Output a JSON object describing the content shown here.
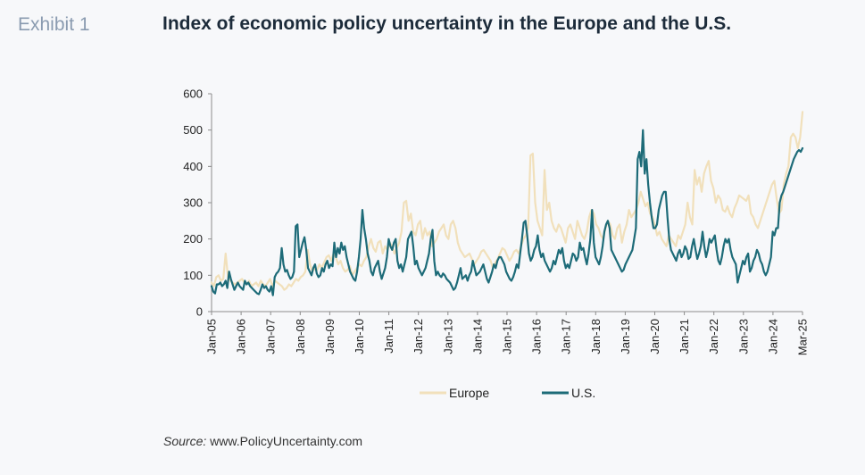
{
  "header": {
    "exhibit": "Exhibit 1",
    "title": "Index of economic policy uncertainty in the Europe and the U.S."
  },
  "source": {
    "label": "Source:",
    "text": " www.PolicyUncertainty.com"
  },
  "colors": {
    "europe": "#f1e0bb",
    "us": "#1d6b78",
    "axis": "#8c8c8c",
    "text": "#222222"
  },
  "chart_data": {
    "type": "line",
    "title": "Index of economic policy uncertainty in the Europe and the U.S.",
    "xlabel": "",
    "ylabel": "",
    "ylim": [
      0,
      600
    ],
    "yticks": [
      0,
      100,
      200,
      300,
      400,
      500,
      600
    ],
    "xticks": [
      "Jan-05",
      "Jan-06",
      "Jan-07",
      "Jan-08",
      "Jan-09",
      "Jan-10",
      "Jan-11",
      "Jan-12",
      "Jan-13",
      "Jan-14",
      "Jan-15",
      "Jan-16",
      "Jan-17",
      "Jan-18",
      "Jan-19",
      "Jan-20",
      "Jan-21",
      "Jan-22",
      "Jan-23",
      "Jan-24",
      "Mar-25"
    ],
    "x_start": "Jan-05",
    "x_end": "Mar-25",
    "frequency": "monthly",
    "grid": false,
    "legend": "bottom",
    "series": [
      {
        "name": "Europe",
        "color": "#f1e0bb",
        "values": [
          80,
          70,
          95,
          100,
          85,
          90,
          160,
          95,
          85,
          80,
          75,
          80,
          85,
          90,
          80,
          75,
          85,
          70,
          75,
          80,
          70,
          85,
          75,
          70,
          80,
          90,
          70,
          85,
          80,
          75,
          70,
          60,
          65,
          75,
          70,
          80,
          90,
          85,
          95,
          100,
          110,
          170,
          130,
          110,
          120,
          115,
          130,
          120,
          135,
          150,
          155,
          140,
          160,
          150,
          130,
          140,
          120,
          110,
          115,
          125,
          100,
          110,
          120,
          130,
          125,
          140,
          150,
          180,
          200,
          175,
          165,
          190,
          195,
          160,
          180,
          170,
          190,
          180,
          160,
          175,
          190,
          220,
          300,
          305,
          250,
          270,
          220,
          210,
          240,
          250,
          200,
          230,
          210,
          220,
          180,
          190,
          200,
          220,
          230,
          240,
          210,
          200,
          240,
          250,
          230,
          190,
          170,
          160,
          150,
          155,
          160,
          145,
          130,
          140,
          150,
          165,
          170,
          160,
          150,
          140,
          120,
          135,
          145,
          160,
          175,
          170,
          155,
          140,
          150,
          165,
          170,
          160,
          180,
          200,
          210,
          230,
          430,
          435,
          300,
          250,
          230,
          210,
          390,
          280,
          300,
          250,
          230,
          220,
          240,
          230,
          210,
          190,
          230,
          240,
          220,
          200,
          250,
          230,
          210,
          200,
          220,
          260,
          280,
          270,
          240,
          230,
          210,
          200,
          230,
          250,
          240,
          210,
          200,
          230,
          240,
          190,
          220,
          240,
          280,
          260,
          270,
          280,
          300,
          330,
          310,
          290,
          300,
          270,
          260,
          240,
          210,
          220,
          200,
          190,
          180,
          210,
          200,
          190,
          180,
          210,
          200,
          220,
          240,
          300,
          260,
          240,
          390,
          350,
          370,
          330,
          380,
          400,
          415,
          360,
          340,
          300,
          320,
          310,
          280,
          275,
          290,
          270,
          260,
          285,
          300,
          320,
          315,
          310,
          305,
          320,
          270,
          260,
          240,
          230,
          250,
          270,
          290,
          310,
          330,
          350,
          360,
          310,
          270,
          280,
          350,
          380,
          400,
          480,
          490,
          480,
          450,
          480,
          550
        ]
      },
      {
        "name": "U.S.",
        "color": "#1d6b78",
        "values": [
          70,
          55,
          50,
          75,
          75,
          80,
          70,
          75,
          85,
          65,
          110,
          90,
          75,
          60,
          70,
          80,
          70,
          65,
          60,
          85,
          75,
          80,
          70,
          65,
          60,
          55,
          50,
          48,
          60,
          75,
          65,
          70,
          60,
          55,
          70,
          45,
          95,
          105,
          110,
          120,
          175,
          130,
          110,
          115,
          100,
          90,
          95,
          110,
          235,
          240,
          150,
          170,
          190,
          205,
          170,
          120,
          110,
          100,
          120,
          130,
          105,
          95,
          100,
          120,
          110,
          130,
          140,
          120,
          130,
          125,
          190,
          150,
          175,
          160,
          190,
          170,
          180,
          150,
          130,
          110,
          100,
          90,
          85,
          110,
          150,
          200,
          280,
          230,
          200,
          160,
          140,
          110,
          100,
          120,
          130,
          140,
          110,
          90,
          105,
          120,
          150,
          200,
          180,
          170,
          190,
          200,
          140,
          120,
          130,
          110,
          130,
          150,
          200,
          210,
          220,
          180,
          130,
          140,
          120,
          110,
          100,
          110,
          120,
          140,
          160,
          200,
          225,
          140,
          100,
          110,
          100,
          95,
          105,
          100,
          90,
          85,
          80,
          70,
          60,
          65,
          80,
          100,
          120,
          90,
          95,
          100,
          85,
          100,
          110,
          140,
          120,
          100,
          105,
          110,
          120,
          130,
          110,
          90,
          80,
          95,
          110,
          130,
          120,
          140,
          150,
          150,
          140,
          130,
          110,
          100,
          90,
          85,
          95,
          110,
          130,
          120,
          160,
          200,
          245,
          250,
          210,
          160,
          140,
          150,
          170,
          180,
          210,
          170,
          150,
          160,
          140,
          130,
          120,
          110,
          120,
          140,
          130,
          150,
          170,
          160,
          175,
          140,
          120,
          130,
          120,
          140,
          160,
          155,
          140,
          150,
          190,
          170,
          175,
          150,
          130,
          160,
          200,
          280,
          190,
          150,
          140,
          130,
          150,
          180,
          220,
          240,
          250,
          230,
          170,
          160,
          150,
          140,
          130,
          120,
          110,
          115,
          130,
          140,
          150,
          160,
          170,
          200,
          230,
          420,
          440,
          400,
          500,
          380,
          420,
          350,
          300,
          260,
          230,
          230,
          240,
          280,
          300,
          320,
          330,
          330,
          260,
          200,
          170,
          160,
          150,
          140,
          160,
          170,
          150,
          160,
          180,
          170,
          145,
          150,
          180,
          200,
          170,
          145,
          160,
          180,
          220,
          180,
          150,
          170,
          200,
          190,
          200,
          210,
          170,
          140,
          130,
          150,
          180,
          200,
          190,
          200,
          170,
          150,
          140,
          130,
          80,
          100,
          120,
          140,
          130,
          150,
          160,
          110,
          120,
          140,
          150,
          170,
          160,
          140,
          130,
          110,
          100,
          110,
          130,
          150,
          220,
          210,
          230,
          230,
          300,
          320,
          330,
          345,
          360,
          375,
          390,
          405,
          420,
          430,
          440,
          445,
          440,
          450
        ]
      }
    ]
  }
}
